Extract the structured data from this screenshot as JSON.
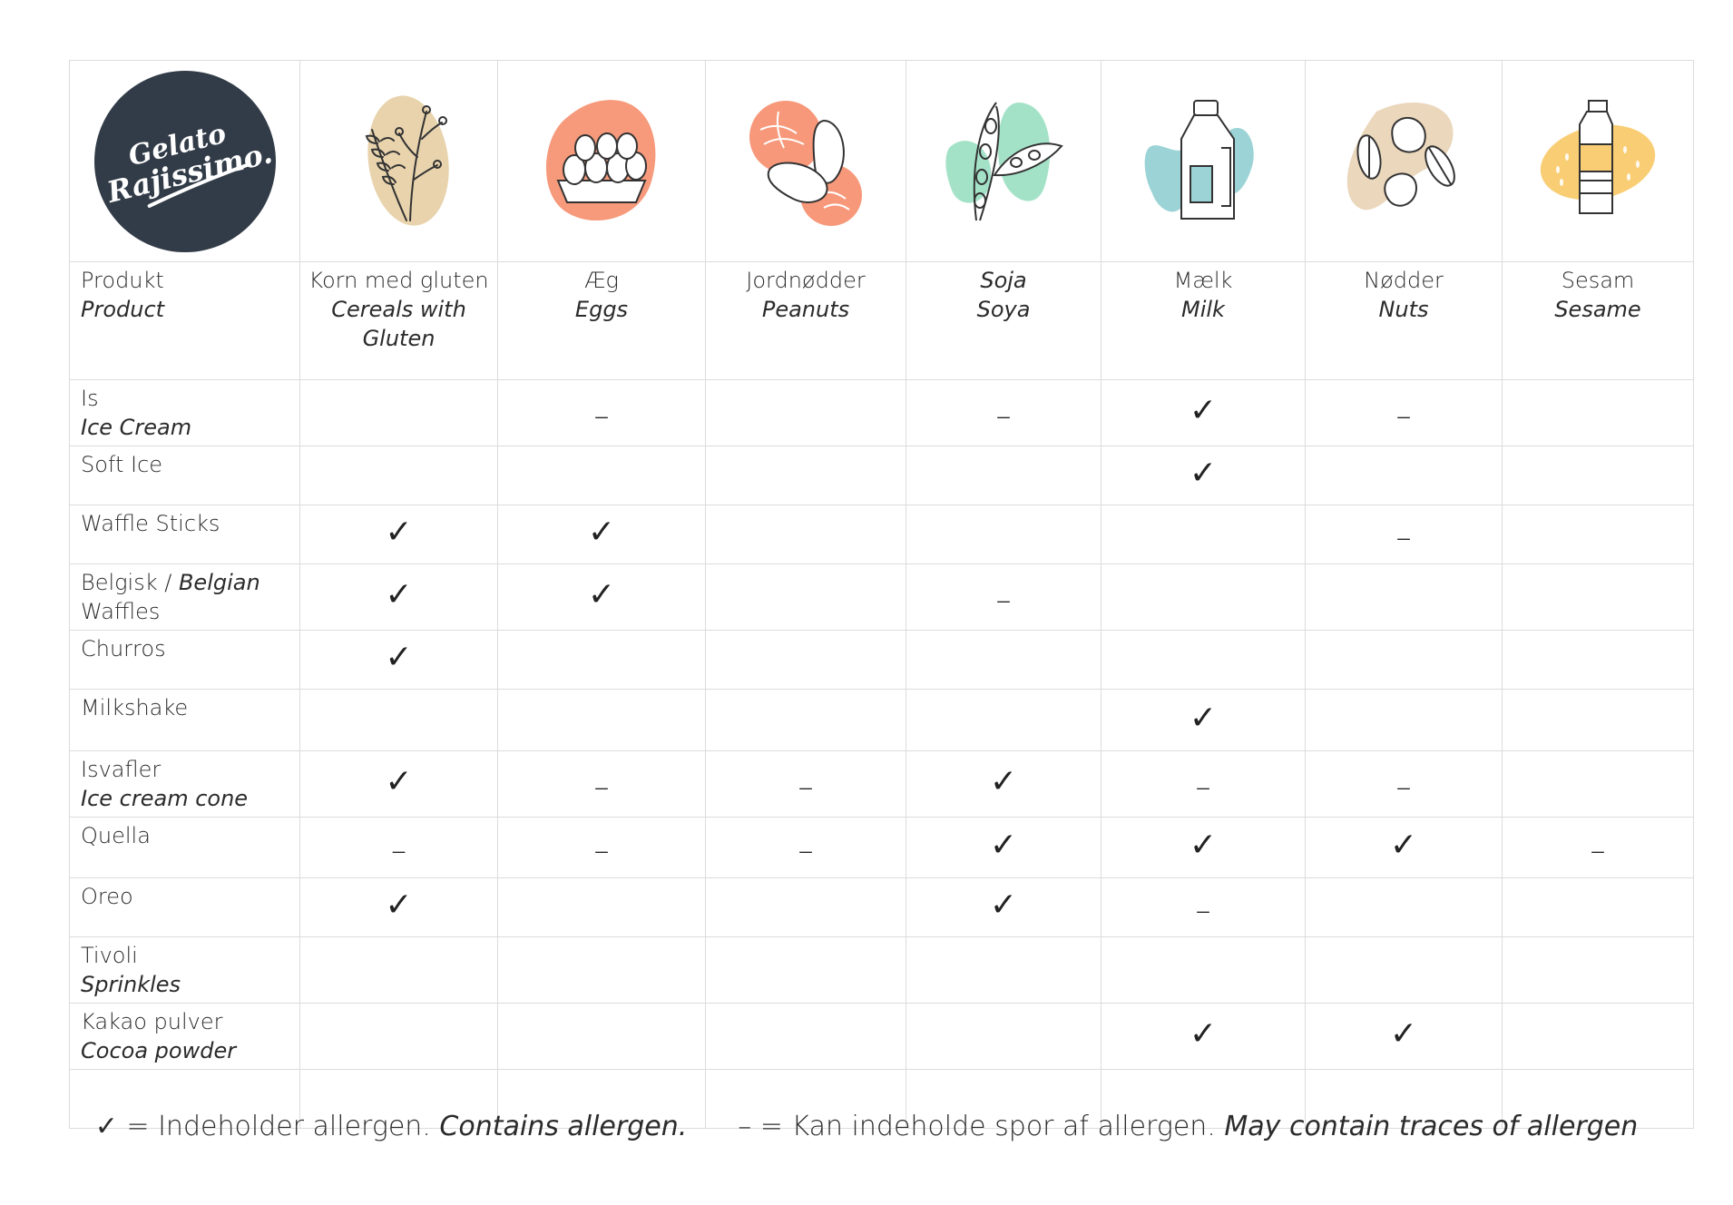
{
  "brand": {
    "logo_line1": "Gelato",
    "logo_line2": "Rajissimo."
  },
  "colors": {
    "logo_bg": "#323c48",
    "gluten": "#e8d3ad",
    "eggs": "#f69a7b",
    "peanuts": "#f7987a",
    "soy": "#a4e2c8",
    "milk": "#9bd3d6",
    "nuts": "#ead7bc",
    "sesame": "#f9cd73",
    "grid": "#dcdcdc"
  },
  "header": {
    "product": {
      "da": "Produkt",
      "en": "Product"
    },
    "allergens": [
      {
        "key": "gluten",
        "icon": "wheat-icon",
        "da": "Korn med gluten",
        "en1": "Cereals with",
        "en2": "Gluten"
      },
      {
        "key": "eggs",
        "icon": "eggs-icon",
        "da": "Æg",
        "en1": "Eggs",
        "en2": ""
      },
      {
        "key": "peanuts",
        "icon": "peanuts-icon",
        "da": "Jordnødder",
        "en1": "Peanuts",
        "en2": ""
      },
      {
        "key": "soy",
        "icon": "soybean-icon",
        "da": "Soja",
        "en1": "Soya",
        "en2": ""
      },
      {
        "key": "milk",
        "icon": "milk-bottle-icon",
        "da": "Mælk",
        "en1": "Milk",
        "en2": ""
      },
      {
        "key": "nuts",
        "icon": "nuts-icon",
        "da": "Nødder",
        "en1": "Nuts",
        "en2": ""
      },
      {
        "key": "sesame",
        "icon": "sesame-icon",
        "da": "Sesam",
        "en1": "Sesame",
        "en2": ""
      }
    ]
  },
  "products": [
    {
      "da": "Is",
      "da_tail": "",
      "en": "Ice Cream",
      "marks": [
        "",
        "dash",
        "",
        "dash",
        "check",
        "dash",
        ""
      ]
    },
    {
      "da": "Soft Ice",
      "da_tail": "",
      "en": "",
      "marks": [
        "",
        "",
        "",
        "",
        "check",
        "",
        ""
      ]
    },
    {
      "da": "Waffle Sticks",
      "da_tail": "",
      "en": "",
      "marks": [
        "check",
        "check",
        "",
        "",
        "",
        "dash",
        ""
      ]
    },
    {
      "da": "Belgisk / ",
      "da_tail": "Waffles",
      "en": "Belgian",
      "marks": [
        "check",
        "check",
        "",
        "dash",
        "",
        "",
        ""
      ]
    },
    {
      "da": "Churros",
      "da_tail": "",
      "en": "",
      "marks": [
        "check",
        "",
        "",
        "",
        "",
        "",
        ""
      ]
    },
    {
      "da": "Milkshake",
      "da_tail": "",
      "en": "",
      "marks": [
        "",
        "",
        "",
        "",
        "check",
        "",
        ""
      ]
    },
    {
      "da": "Isvafler",
      "da_tail": "",
      "en": "Ice cream cone",
      "marks": [
        "check",
        "dash",
        "dash",
        "check",
        "dash",
        "dash",
        ""
      ]
    },
    {
      "da": "Quella",
      "da_tail": "",
      "en": "",
      "marks": [
        "dash",
        "dash",
        "dash",
        "check",
        "check",
        "check",
        "dash"
      ]
    },
    {
      "da": "Oreo",
      "da_tail": "",
      "en": "",
      "marks": [
        "check",
        "",
        "",
        "check",
        "dash",
        "",
        ""
      ]
    },
    {
      "da": "Tivoli",
      "da_tail": "",
      "en": "Sprinkles",
      "marks": [
        "",
        "",
        "",
        "",
        "",
        "",
        ""
      ]
    },
    {
      "da": "Kakao pulver",
      "da_tail": "",
      "en": "Cocoa powder",
      "marks": [
        "",
        "",
        "",
        "",
        "check",
        "check",
        ""
      ]
    },
    {
      "da": "",
      "da_tail": "",
      "en": "",
      "marks": [
        "",
        "",
        "",
        "",
        "",
        "",
        ""
      ]
    }
  ],
  "symbols": {
    "check": "✓",
    "dash": "–"
  },
  "legend": {
    "check_symbol": "✓",
    "check_da": " = Indeholder allergen. ",
    "check_en": "Contains allergen.",
    "dash_symbol": "–",
    "dash_da": " = Kan indeholde spor af allergen. ",
    "dash_en": "May contain traces of allergen"
  }
}
